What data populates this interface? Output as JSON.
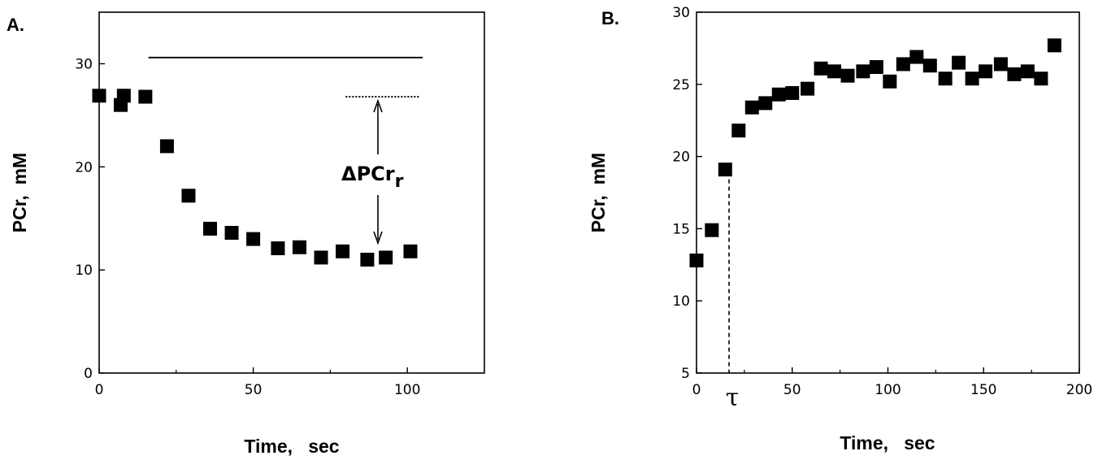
{
  "chart_data": [
    {
      "panel_label": "A.",
      "type": "scatter",
      "xlabel": "Time,   sec",
      "ylabel": "PCr,  mM",
      "xlim": [
        0,
        125
      ],
      "ylim": [
        0,
        35
      ],
      "xticks": [
        "0",
        "50",
        "100"
      ],
      "yticks": [
        "0",
        "10",
        "20",
        "30"
      ],
      "x": [
        0,
        7,
        8,
        15,
        22,
        29,
        36,
        43,
        50,
        58,
        65,
        72,
        79,
        87,
        93,
        101
      ],
      "y": [
        26.9,
        26.0,
        26.9,
        26.8,
        22.0,
        17.2,
        14.0,
        13.6,
        13.0,
        12.1,
        12.2,
        11.2,
        11.8,
        11.0,
        11.2,
        11.8
      ],
      "reference_lines": [
        {
          "style": "solid",
          "x": [
            16,
            105
          ],
          "y": 30.6
        },
        {
          "style": "dotted",
          "x": [
            80,
            104
          ],
          "y": 26.8
        }
      ],
      "annotation": {
        "text": "ΔPCr",
        "subscript": "r"
      }
    },
    {
      "panel_label": "B.",
      "type": "scatter",
      "xlabel": "Time,   sec",
      "ylabel": "PCr,  mM",
      "xlim": [
        0,
        200
      ],
      "ylim": [
        5,
        30
      ],
      "xticks": [
        "0",
        "50",
        "100",
        "150",
        "200"
      ],
      "yticks": [
        "5",
        "10",
        "15",
        "20",
        "25",
        "30"
      ],
      "x": [
        0,
        8,
        15,
        22,
        29,
        36,
        43,
        50,
        58,
        65,
        72,
        79,
        87,
        94,
        101,
        108,
        115,
        122,
        130,
        137,
        144,
        151,
        159,
        166,
        173,
        180,
        187
      ],
      "y": [
        12.8,
        14.9,
        19.1,
        21.8,
        23.4,
        23.7,
        24.3,
        24.4,
        24.7,
        26.1,
        25.9,
        25.6,
        25.9,
        26.2,
        25.2,
        26.4,
        26.9,
        26.3,
        25.4,
        26.5,
        25.4,
        25.9,
        26.4,
        25.7,
        25.9,
        25.4,
        27.7
      ],
      "tau_marker": {
        "label": "τ",
        "x": 17
      }
    }
  ]
}
